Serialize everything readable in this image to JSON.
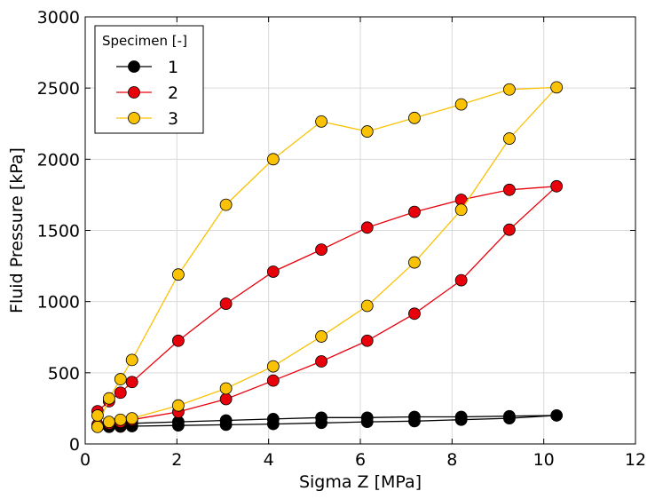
{
  "chart_data": {
    "type": "line",
    "xlabel": "Sigma Z [MPa]",
    "ylabel": "Fluid Pressure [kPa]",
    "xlim": [
      0,
      12
    ],
    "ylim": [
      0,
      3000
    ],
    "xticks": [
      0,
      2,
      4,
      6,
      8,
      10,
      12
    ],
    "yticks": [
      0,
      500,
      1000,
      1500,
      2000,
      2500,
      3000
    ],
    "grid": true,
    "legend": {
      "title": "Specimen [-]",
      "placement": "upper-left"
    },
    "series": [
      {
        "name": "1",
        "color": "#000000",
        "x": [
          0.27,
          0.52,
          0.77,
          1.02,
          2.03,
          3.07,
          4.1,
          5.15,
          6.15,
          7.18,
          8.2,
          9.25,
          10.28,
          9.25,
          8.2,
          7.18,
          6.15,
          5.15,
          4.1,
          3.07,
          2.03,
          1.02,
          0.77,
          0.52,
          0.27
        ],
        "y": [
          120,
          120,
          122,
          125,
          130,
          135,
          140,
          148,
          155,
          160,
          170,
          180,
          200,
          195,
          190,
          190,
          185,
          185,
          175,
          165,
          155,
          145,
          140,
          130,
          125
        ]
      },
      {
        "name": "2",
        "color": "#e8000b",
        "x": [
          0.27,
          0.52,
          0.77,
          1.02,
          2.03,
          3.07,
          4.1,
          5.15,
          6.15,
          7.18,
          8.2,
          9.25,
          10.28,
          9.25,
          8.2,
          7.18,
          6.15,
          5.15,
          4.1,
          3.07,
          2.03,
          1.02,
          0.77,
          0.52,
          0.27
        ],
        "y": [
          230,
          300,
          360,
          435,
          725,
          985,
          1210,
          1365,
          1520,
          1630,
          1715,
          1785,
          1810,
          1505,
          1150,
          915,
          725,
          580,
          445,
          315,
          225,
          170,
          155,
          145,
          135
        ]
      },
      {
        "name": "3",
        "color": "#fac205",
        "x": [
          0.27,
          0.52,
          0.77,
          1.02,
          2.03,
          3.07,
          4.1,
          5.15,
          6.15,
          7.18,
          8.2,
          9.25,
          10.28,
          9.25,
          8.2,
          7.18,
          6.15,
          5.15,
          4.1,
          3.07,
          2.03,
          1.02,
          0.77,
          0.52,
          0.27
        ],
        "y": [
          120,
          320,
          455,
          590,
          1190,
          1680,
          2000,
          2265,
          2195,
          2290,
          2385,
          2490,
          2505,
          2145,
          1645,
          1275,
          970,
          755,
          545,
          390,
          270,
          180,
          170,
          155,
          200
        ]
      }
    ]
  }
}
